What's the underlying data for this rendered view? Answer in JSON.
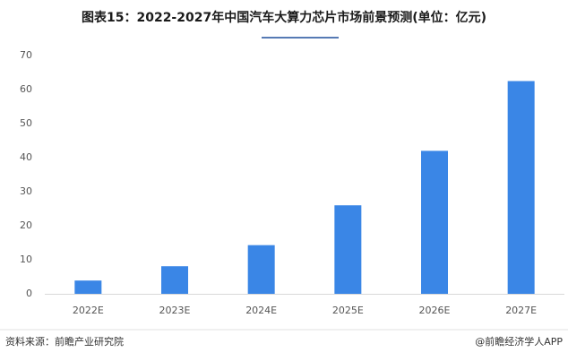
{
  "chart_data": {
    "type": "bar",
    "title": "图表15：2022-2027年中国汽车大算力芯片市场前景预测(单位：亿元)",
    "categories": [
      "2022E",
      "2023E",
      "2024E",
      "2025E",
      "2026E",
      "2027E"
    ],
    "values": [
      3.9,
      8.1,
      14.3,
      26,
      42,
      62.5
    ],
    "color": "#3a86e6",
    "ylim": [
      0,
      70
    ],
    "yticks": [
      0,
      10,
      20,
      30,
      40,
      50,
      60,
      70
    ],
    "grid": false,
    "source": "资料来源：前瞻产业研究院",
    "credit": "@前瞻经济学人APP"
  }
}
